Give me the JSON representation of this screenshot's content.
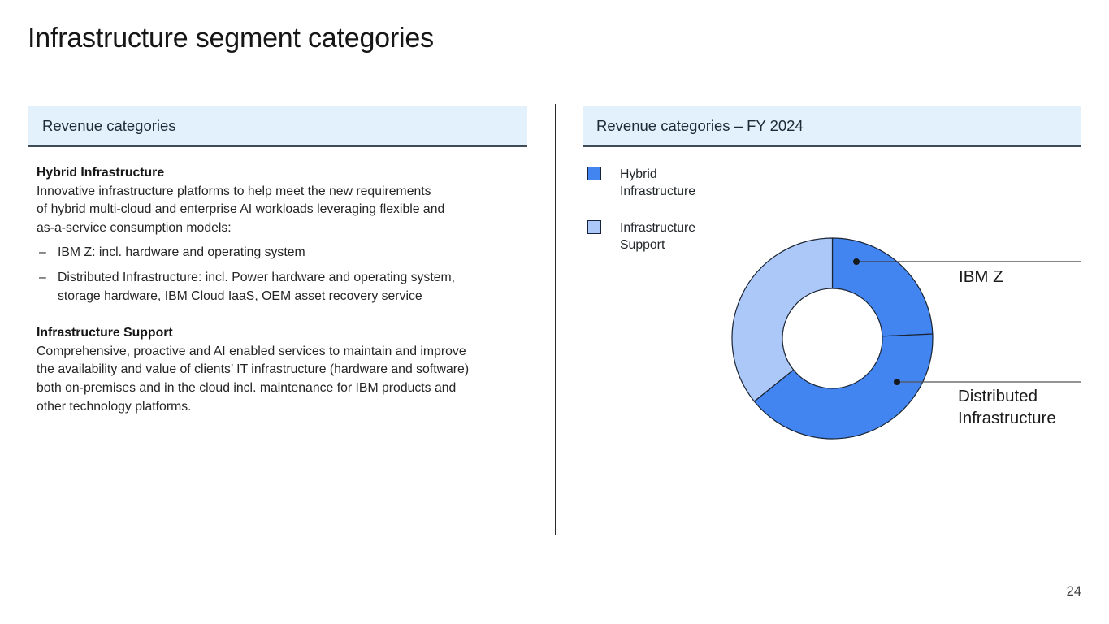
{
  "slide": {
    "title": "Infrastructure segment categories",
    "page_number": "24"
  },
  "left_panel": {
    "header": "Revenue categories",
    "section1_title": "Hybrid Infrastructure",
    "section1_body": "Innovative infrastructure platforms to help meet the new requirements\nof hybrid multi-cloud and enterprise AI workloads leveraging flexible and\nas-a-service consumption models:",
    "bullet_marker": "–",
    "bullets": [
      "IBM Z: incl. hardware and operating system",
      "Distributed Infrastructure: incl. Power hardware and operating system,\nstorage hardware, IBM Cloud IaaS, OEM asset recovery service"
    ],
    "section2_title": "Infrastructure Support",
    "section2_body": "Comprehensive, proactive and AI enabled services to maintain and improve\nthe availability and value of clients’ IT infrastructure (hardware and software)\nboth on-premises and in the cloud incl. maintenance for IBM products and\nother technology platforms."
  },
  "right_panel": {
    "header": "Revenue categories – FY 2024",
    "legend": [
      {
        "label": "Hybrid\nInfrastructure",
        "color_key": "hybrid"
      },
      {
        "label": "Infrastructure\nSupport",
        "color_key": "support"
      }
    ]
  },
  "chart_data": {
    "type": "pie",
    "donut": true,
    "title": "Revenue categories – FY 2024",
    "start_angle_deg": 0,
    "segments": [
      {
        "label": "IBM Z",
        "group": "Hybrid Infrastructure",
        "value_pct": 24.3,
        "color": "#4285f0"
      },
      {
        "label": "Distributed Infrastructure",
        "group": "Hybrid Infrastructure",
        "value_pct": 39.9,
        "color": "#4285f0"
      },
      {
        "label": "Infrastructure Support",
        "group": "Infrastructure Support",
        "value_pct": 35.8,
        "color": "#abc8f8"
      }
    ],
    "colors": {
      "hybrid": "#4285f0",
      "support": "#abc8f8",
      "outline": "#1a2433"
    },
    "legend_position": "top-left",
    "callout_labels": [
      "IBM Z",
      "Distributed\nInfrastructure"
    ]
  }
}
